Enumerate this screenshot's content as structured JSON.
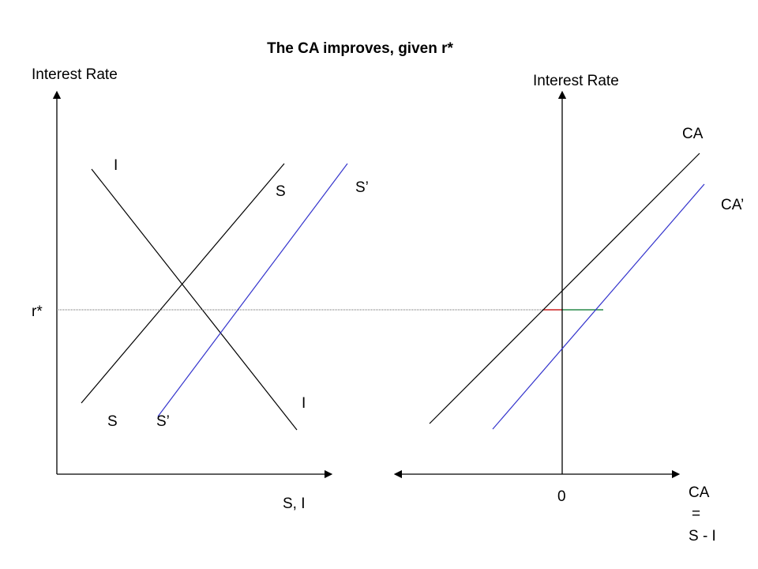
{
  "title": "The CA improves, given r*",
  "colors": {
    "axis": "#000000",
    "original_curve": "#000000",
    "shifted_curve": "#3333cc",
    "rate_line": "#666666",
    "deficit_segment": "#cc2222",
    "surplus_segment": "#2a8a4a"
  },
  "left_panel": {
    "y_axis_label": "Interest Rate",
    "x_axis_label": "S, I",
    "rate_label": "r*",
    "investment_label_top": "I",
    "investment_label_bottom": "I",
    "saving_label_top": "S",
    "saving_label_bottom": "S",
    "saving_shift_label_top": "S’",
    "saving_shift_label_bottom": "S’"
  },
  "right_panel": {
    "y_axis_label": "Interest Rate",
    "x_axis_label_line1": "CA",
    "x_axis_label_line2": "=",
    "x_axis_label_line3": "S - I",
    "origin_label": "0",
    "ca_label": "CA",
    "ca_shift_label": "CA’"
  }
}
